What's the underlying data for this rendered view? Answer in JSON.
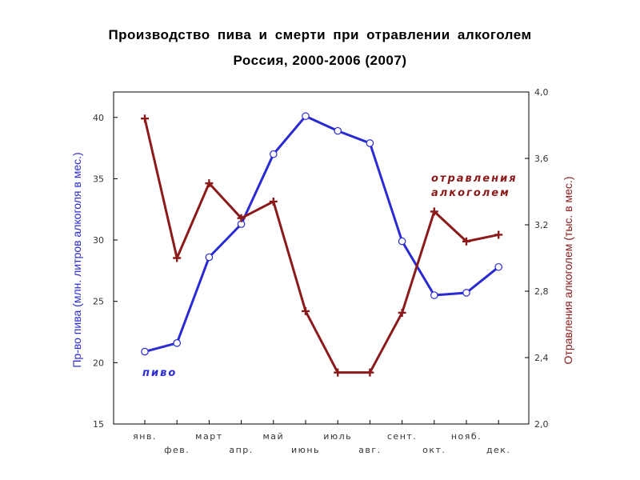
{
  "title": "Производство пива и смерти при отравлении алкоголем",
  "subtitle": "Россия, 2000-2006 (2007)",
  "chart_data": {
    "type": "line",
    "categories": [
      "янв.",
      "фев.",
      "март",
      "апр.",
      "май",
      "июнь",
      "июль",
      "авг.",
      "сент.",
      "окт.",
      "нояб.",
      "дек."
    ],
    "ylabel_left": "Пр-во пива (млн. литров алкоголя в мес.)",
    "ylabel_right": "Отравления алкоголем (тыс. в мес.)",
    "ylim_left": [
      15,
      42
    ],
    "ylim_right": [
      2.0,
      4.0
    ],
    "yticks_left": [
      "15",
      "20",
      "25",
      "30",
      "35",
      "40"
    ],
    "yticks_right": [
      "2,0",
      "2,4",
      "2,8",
      "3,2",
      "3,6",
      "4,0"
    ],
    "grid": false,
    "series": [
      {
        "name": "пиво",
        "axis": "left",
        "color": "#2a2ad4",
        "marker": "circle",
        "values": [
          20.9,
          21.6,
          28.6,
          31.3,
          37.0,
          40.1,
          38.9,
          37.9,
          29.9,
          25.5,
          25.7,
          27.8
        ]
      },
      {
        "name": "отравления алкоголем",
        "axis": "right",
        "color": "#8b1a1a",
        "marker": "plus",
        "values": [
          3.84,
          3.0,
          3.45,
          3.24,
          3.34,
          2.68,
          2.31,
          2.31,
          2.67,
          3.28,
          3.1,
          3.14
        ]
      }
    ],
    "annotations": {
      "blue": "пиво",
      "red_line1": "отравления",
      "red_line2": "алкоголем"
    }
  }
}
